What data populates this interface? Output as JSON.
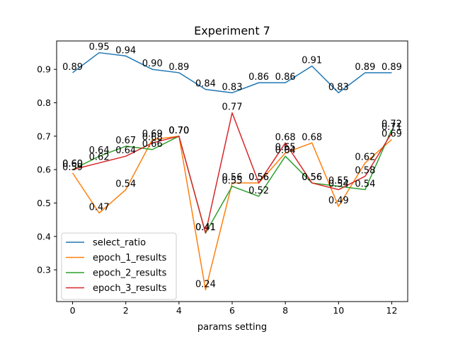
{
  "chart_data": {
    "type": "line",
    "title": "Experiment 7",
    "xlabel": "params setting",
    "ylabel": "",
    "x": [
      0,
      1,
      2,
      3,
      4,
      5,
      6,
      7,
      8,
      9,
      10,
      11,
      12
    ],
    "xlim": [
      -0.6,
      12.6
    ],
    "ylim": [
      0.205,
      0.985
    ],
    "xticks": [
      0,
      2,
      4,
      6,
      8,
      10,
      12
    ],
    "yticks": [
      0.3,
      0.4,
      0.5,
      0.6,
      0.7,
      0.8,
      0.9
    ],
    "grid": false,
    "legend_position": "lower-left",
    "series": [
      {
        "name": "select_ratio",
        "color": "#1f77b4",
        "values": [
          0.89,
          0.95,
          0.94,
          0.9,
          0.89,
          0.84,
          0.83,
          0.86,
          0.86,
          0.91,
          0.83,
          0.89,
          0.89
        ]
      },
      {
        "name": "epoch_1_results",
        "color": "#ff7f0e",
        "values": [
          0.59,
          0.47,
          0.54,
          0.69,
          0.7,
          0.24,
          0.56,
          0.56,
          0.65,
          0.68,
          0.49,
          0.62,
          0.69
        ]
      },
      {
        "name": "epoch_2_results",
        "color": "#2ca02c",
        "values": [
          0.6,
          0.64,
          0.67,
          0.66,
          0.7,
          0.41,
          0.55,
          0.52,
          0.64,
          0.56,
          0.55,
          0.54,
          0.72
        ]
      },
      {
        "name": "epoch_3_results",
        "color": "#d62728",
        "values": [
          0.6,
          0.62,
          0.64,
          0.68,
          0.7,
          0.41,
          0.77,
          0.56,
          0.68,
          0.56,
          0.54,
          0.58,
          0.71
        ]
      }
    ]
  }
}
